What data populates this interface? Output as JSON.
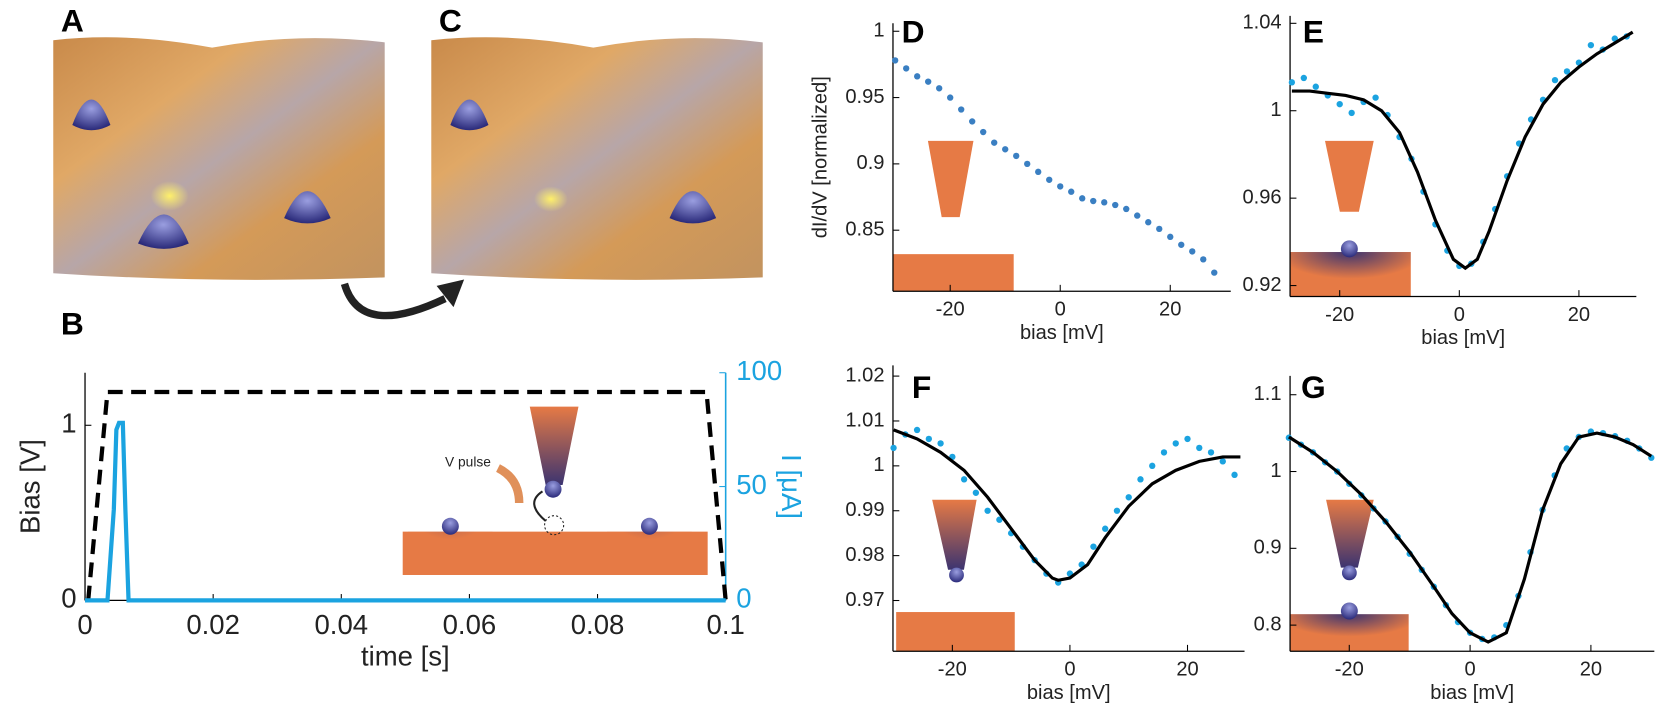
{
  "images": [
    {
      "panel": "A"
    },
    {
      "panel": "C"
    }
  ],
  "chart_data": [
    {
      "panel": "B",
      "type": "line",
      "xlabel": "time [s]",
      "ylabel": "Bias [V]",
      "y2label": "I [μA]",
      "annotation": "V pulse",
      "xlim": [
        0,
        0.1
      ],
      "xticks": [
        0,
        0.02,
        0.04,
        0.06,
        0.08,
        0.1
      ],
      "ylim": [
        0,
        1.3
      ],
      "yticks": [
        0,
        1
      ],
      "y2lim": [
        0,
        100
      ],
      "y2ticks": [
        0,
        50,
        100
      ],
      "series": [
        {
          "mode": "line",
          "dash": true,
          "color": "#000000",
          "x": [
            0.0005,
            0.0035,
            0.097,
            0.1
          ],
          "values": [
            0,
            1.19,
            1.19,
            0
          ]
        },
        {
          "mode": "line",
          "axis": "y2",
          "color": "#1ba3e0",
          "x": [
            0,
            0.0035,
            0.0045,
            0.0049,
            0.0053,
            0.0059,
            0.0063,
            0.0068,
            0.1
          ],
          "values": [
            0,
            0,
            40,
            75,
            78,
            78,
            40,
            0,
            0
          ]
        }
      ]
    },
    {
      "panel": "D",
      "type": "scatter",
      "xlabel": "bias [mV]",
      "ylabel": "dI/dV [normalized]",
      "xlim": [
        -30.4,
        31
      ],
      "xticks": [
        -20,
        0,
        20
      ],
      "ylim": [
        0.804,
        1.006
      ],
      "yticks": [
        0.85,
        0.9,
        0.95,
        1
      ],
      "series": [
        {
          "mode": "markers",
          "color": "#3a7fc2",
          "x": [
            -30,
            -28,
            -26,
            -24,
            -22,
            -20,
            -18,
            -16,
            -14,
            -12,
            -10,
            -8,
            -6,
            -4,
            -2,
            0,
            2,
            4,
            6,
            8,
            10,
            12,
            14,
            16,
            18,
            20,
            22,
            24,
            26,
            28
          ],
          "values": [
            0.978,
            0.972,
            0.966,
            0.962,
            0.957,
            0.95,
            0.941,
            0.932,
            0.924,
            0.916,
            0.911,
            0.906,
            0.9,
            0.894,
            0.888,
            0.883,
            0.879,
            0.874,
            0.872,
            0.871,
            0.869,
            0.866,
            0.861,
            0.856,
            0.851,
            0.845,
            0.839,
            0.834,
            0.828,
            0.818
          ]
        }
      ]
    },
    {
      "panel": "E",
      "type": "scatter",
      "xlabel": "bias [mV]",
      "xlim": [
        -28.3,
        29.6
      ],
      "xticks": [
        -20,
        0,
        20
      ],
      "ylim": [
        0.915,
        1.0434
      ],
      "yticks": [
        0.92,
        0.96,
        1,
        1.04
      ],
      "series": [
        {
          "mode": "markers",
          "color": "#1ba3e0",
          "x": [
            -28,
            -26,
            -24,
            -22,
            -20,
            -18,
            -16,
            -14,
            -12,
            -10,
            -8,
            -6,
            -4,
            -2,
            0,
            2,
            4,
            6,
            8,
            10,
            12,
            14,
            16,
            18,
            20,
            22,
            24,
            26,
            28
          ],
          "values": [
            1.013,
            1.015,
            1.011,
            1.007,
            1.003,
            0.999,
            1.004,
            1.006,
            0.998,
            0.988,
            0.978,
            0.963,
            0.948,
            0.936,
            0.929,
            0.93,
            0.94,
            0.955,
            0.97,
            0.985,
            0.996,
            1.005,
            1.014,
            1.018,
            1.022,
            1.03,
            1.028,
            1.033,
            1.034
          ]
        },
        {
          "mode": "line",
          "color": "#000000",
          "x": [
            -28,
            -25,
            -22,
            -19,
            -16,
            -13,
            -10,
            -7,
            -4,
            -1,
            1,
            3,
            5,
            8,
            11,
            14,
            17,
            20,
            23,
            26,
            29
          ],
          "values": [
            1.009,
            1.009,
            1.008,
            1.007,
            1.005,
            1,
            0.99,
            0.972,
            0.95,
            0.932,
            0.928,
            0.932,
            0.945,
            0.968,
            0.988,
            1.003,
            1.013,
            1.02,
            1.026,
            1.031,
            1.036
          ]
        }
      ]
    },
    {
      "panel": "F",
      "type": "scatter",
      "xlabel": "bias [mV]",
      "xlim": [
        -30.1,
        29.7
      ],
      "xticks": [
        -20,
        0,
        20
      ],
      "ylim": [
        0.9587,
        1.0224
      ],
      "yticks": [
        0.97,
        0.98,
        0.99,
        1,
        1.01,
        1.02
      ],
      "series": [
        {
          "mode": "markers",
          "color": "#1ba3e0",
          "x": [
            -30,
            -28,
            -26,
            -24,
            -22,
            -20,
            -18,
            -16,
            -14,
            -12,
            -10,
            -8,
            -6,
            -4,
            -2,
            0,
            2,
            4,
            6,
            8,
            10,
            12,
            14,
            16,
            18,
            20,
            22,
            24,
            26,
            28
          ],
          "values": [
            1.004,
            1.007,
            1.008,
            1.006,
            1.005,
            1.002,
            0.997,
            0.994,
            0.99,
            0.988,
            0.985,
            0.982,
            0.979,
            0.976,
            0.974,
            0.976,
            0.978,
            0.982,
            0.986,
            0.99,
            0.993,
            0.997,
            1,
            1.003,
            1.005,
            1.006,
            1.004,
            1.003,
            1.001,
            0.998
          ]
        },
        {
          "mode": "line",
          "color": "#000000",
          "x": [
            -30,
            -26,
            -22,
            -18,
            -14,
            -10,
            -6,
            -3,
            -2,
            0,
            3,
            6,
            10,
            14,
            18,
            22,
            26,
            29
          ],
          "values": [
            1.008,
            1.006,
            1.003,
            0.999,
            0.993,
            0.986,
            0.979,
            0.975,
            0.9745,
            0.975,
            0.978,
            0.984,
            0.991,
            0.996,
            0.999,
            1.001,
            1.002,
            1.002
          ]
        }
      ]
    },
    {
      "panel": "G",
      "type": "scatter",
      "xlabel": "bias [mV]",
      "xlim": [
        -29.8,
        30.5
      ],
      "xticks": [
        -20,
        0,
        20
      ],
      "ylim": [
        0.766,
        1.1245
      ],
      "yticks": [
        0.8,
        0.9,
        1,
        1.1
      ],
      "series": [
        {
          "mode": "markers",
          "color": "#1ba3e0",
          "x": [
            -30,
            -28,
            -26,
            -24,
            -22,
            -20,
            -18,
            -16,
            -14,
            -12,
            -10,
            -8,
            -6,
            -4,
            -2,
            0,
            2,
            4,
            6,
            8,
            10,
            12,
            14,
            16,
            18,
            20,
            22,
            24,
            26,
            28,
            30
          ],
          "values": [
            1.044,
            1.035,
            1.025,
            1.012,
            1,
            0.984,
            0.969,
            0.952,
            0.935,
            0.915,
            0.893,
            0.872,
            0.85,
            0.826,
            0.804,
            0.79,
            0.782,
            0.784,
            0.8,
            0.838,
            0.895,
            0.95,
            0.995,
            1.03,
            1.045,
            1.052,
            1.05,
            1.046,
            1.04,
            1.03,
            1.018
          ]
        },
        {
          "mode": "line",
          "color": "#000000",
          "x": [
            -30,
            -26,
            -22,
            -18,
            -14,
            -10,
            -6,
            -3,
            0,
            3,
            6,
            9,
            12,
            15,
            18,
            21,
            24,
            27,
            30
          ],
          "values": [
            1.045,
            1.025,
            1,
            0.97,
            0.935,
            0.895,
            0.85,
            0.815,
            0.79,
            0.778,
            0.79,
            0.86,
            0.95,
            1.01,
            1.045,
            1.05,
            1.045,
            1.035,
            1.02
          ]
        }
      ]
    }
  ]
}
